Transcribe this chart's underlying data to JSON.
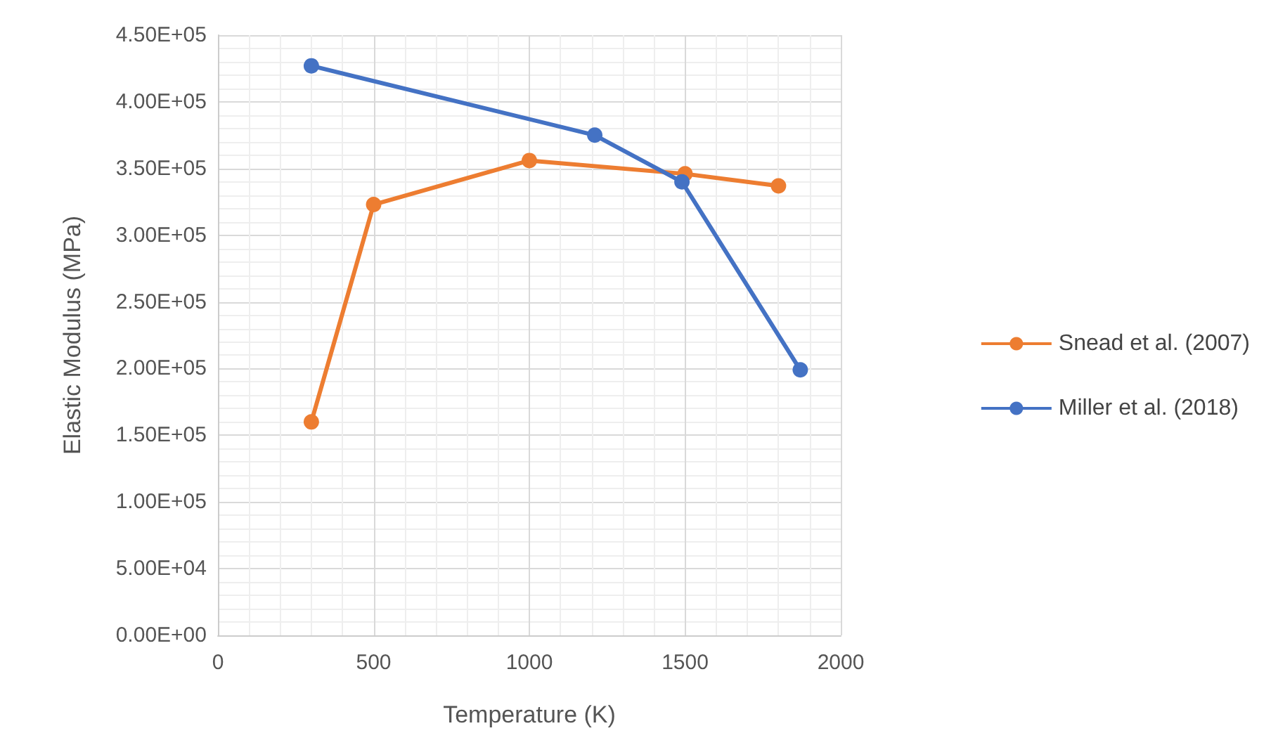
{
  "chart_data": {
    "type": "line",
    "xlabel": "Temperature (K)",
    "ylabel": "Elastic Modulus (MPa)",
    "xlim": [
      0,
      2000
    ],
    "xticks": [
      0,
      500,
      1000,
      1500,
      2000
    ],
    "ylim": [
      0,
      450000
    ],
    "yticks": [
      {
        "value": 0,
        "label": "0.00E+00"
      },
      {
        "value": 50000,
        "label": "5.00E+04"
      },
      {
        "value": 100000,
        "label": "1.00E+05"
      },
      {
        "value": 150000,
        "label": "1.50E+05"
      },
      {
        "value": 200000,
        "label": "2.00E+05"
      },
      {
        "value": 250000,
        "label": "2.50E+05"
      },
      {
        "value": 300000,
        "label": "3.00E+05"
      },
      {
        "value": 350000,
        "label": "3.50E+05"
      },
      {
        "value": 400000,
        "label": "4.00E+05"
      },
      {
        "value": 450000,
        "label": "4.50E+05"
      }
    ],
    "grid": true,
    "legend": "right",
    "marker": "circle",
    "series": [
      {
        "name": "Snead et al. (2007)",
        "color": "#ed7d31",
        "x": [
          300,
          500,
          1000,
          1500,
          1800
        ],
        "values": [
          160000,
          323000,
          356000,
          346000,
          337000
        ]
      },
      {
        "name": "Miller et al. (2018)",
        "color": "#4472c4",
        "x": [
          300,
          1210,
          1490,
          1870
        ],
        "values": [
          427000,
          375000,
          340000,
          199000
        ]
      }
    ]
  }
}
